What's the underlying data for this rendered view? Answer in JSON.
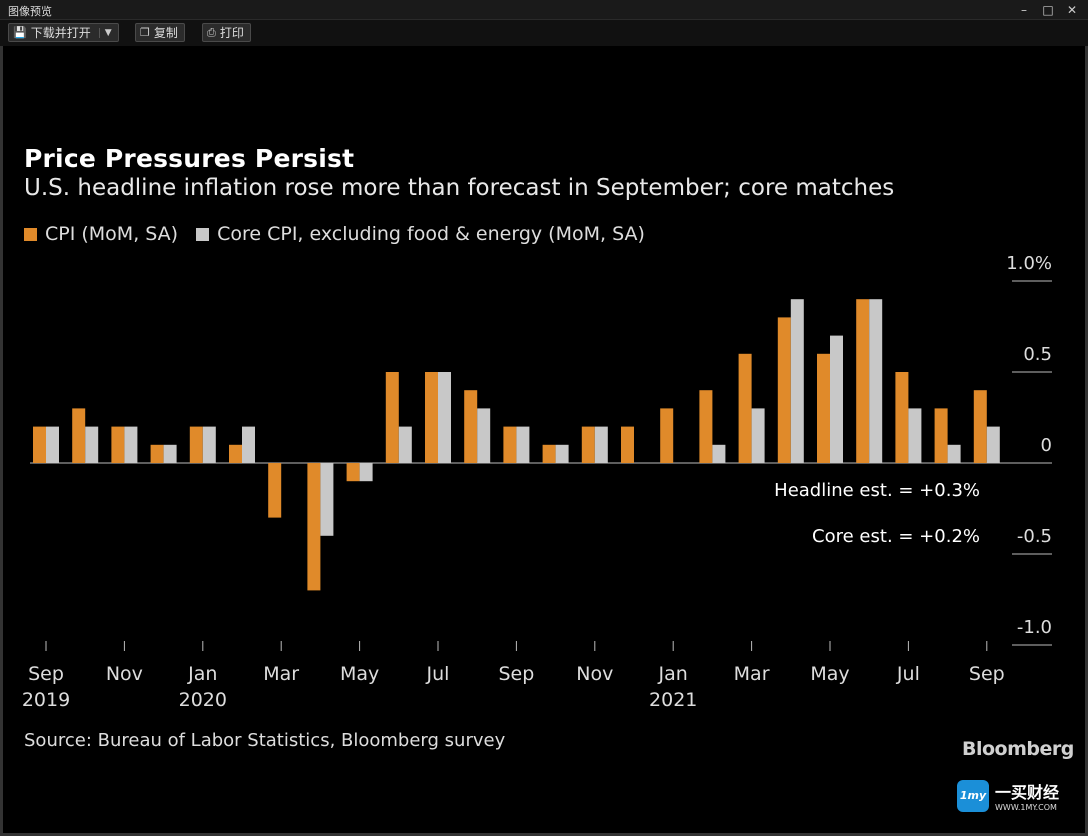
{
  "window": {
    "title": "图像预览"
  },
  "toolbar": {
    "download_open": "下载并打开",
    "copy": "复制",
    "print": "打印"
  },
  "chart_data": {
    "type": "bar",
    "title": "Price Pressures Persist",
    "subtitle": "U.S. headline inflation rose more than forecast in September; core matches",
    "categories": [
      "Sep 2019",
      "Oct 2019",
      "Nov 2019",
      "Dec 2019",
      "Jan 2020",
      "Feb 2020",
      "Mar 2020",
      "Apr 2020",
      "May 2020",
      "Jun 2020",
      "Jul 2020",
      "Aug 2020",
      "Sep 2020",
      "Oct 2020",
      "Nov 2020",
      "Dec 2020",
      "Jan 2021",
      "Feb 2021",
      "Mar 2021",
      "Apr 2021",
      "May 2021",
      "Jun 2021",
      "Jul 2021",
      "Aug 2021",
      "Sep 2021"
    ],
    "series": [
      {
        "name": "CPI (MoM, SA)",
        "color": "#e08a2a",
        "values": [
          0.2,
          0.3,
          0.2,
          0.1,
          0.2,
          0.1,
          -0.3,
          -0.7,
          -0.1,
          0.5,
          0.5,
          0.4,
          0.2,
          0.1,
          0.2,
          0.2,
          0.3,
          0.4,
          0.6,
          0.8,
          0.6,
          0.9,
          0.5,
          0.3,
          0.4
        ]
      },
      {
        "name": "Core CPI, excluding food & energy (MoM, SA)",
        "color": "#c8c8c8",
        "values": [
          0.2,
          0.2,
          0.2,
          0.1,
          0.2,
          0.2,
          null,
          -0.4,
          -0.1,
          0.2,
          0.5,
          0.3,
          0.2,
          0.1,
          0.2,
          null,
          null,
          0.1,
          0.3,
          0.9,
          0.7,
          0.9,
          0.3,
          0.1,
          0.2
        ]
      }
    ],
    "x_tick_labels": [
      {
        "index": 0,
        "month": "Sep",
        "year": "2019"
      },
      {
        "index": 2,
        "month": "Nov",
        "year": ""
      },
      {
        "index": 4,
        "month": "Jan",
        "year": "2020"
      },
      {
        "index": 6,
        "month": "Mar",
        "year": ""
      },
      {
        "index": 8,
        "month": "May",
        "year": ""
      },
      {
        "index": 10,
        "month": "Jul",
        "year": ""
      },
      {
        "index": 12,
        "month": "Sep",
        "year": ""
      },
      {
        "index": 14,
        "month": "Nov",
        "year": ""
      },
      {
        "index": 16,
        "month": "Jan",
        "year": "2021"
      },
      {
        "index": 18,
        "month": "Mar",
        "year": ""
      },
      {
        "index": 20,
        "month": "May",
        "year": ""
      },
      {
        "index": 22,
        "month": "Jul",
        "year": ""
      },
      {
        "index": 24,
        "month": "Sep",
        "year": ""
      }
    ],
    "y_ticks": [
      {
        "value": 1.0,
        "label": "1.0%"
      },
      {
        "value": 0.5,
        "label": "0.5"
      },
      {
        "value": 0,
        "label": "0"
      },
      {
        "value": -0.5,
        "label": "-0.5"
      },
      {
        "value": -1.0,
        "label": "-1.0"
      }
    ],
    "ylim": [
      -1.0,
      1.0
    ],
    "annotations": [
      "Headline est. = +0.3%",
      "Core est. = +0.2%"
    ],
    "source": "Source: Bureau of Labor Statistics, Bloomberg survey",
    "brand": "Bloomberg"
  },
  "watermark": {
    "badge": "1my",
    "name": "一买财经",
    "url": "WWW.1MY.COM"
  }
}
